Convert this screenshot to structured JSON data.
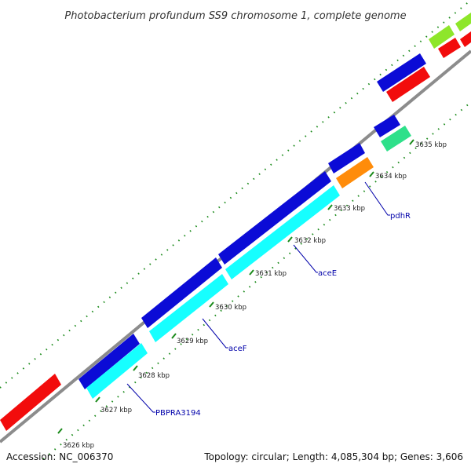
{
  "title": "Photobacterium profundum SS9 chromosome 1, complete genome",
  "footer": {
    "accession": "Accession: NC_006370",
    "summary": "Topology: circular; Length: 4,085,304 bp; Genes: 3,606"
  },
  "ticks": [
    "3626 kbp",
    "3627 kbp",
    "3628 kbp",
    "3629 kbp",
    "3630 kbp",
    "3631 kbp",
    "3632 kbp",
    "3633 kbp",
    "3634 kbp",
    "3635 kbp"
  ],
  "genes": [
    "PBPRA3194",
    "aceF",
    "aceE",
    "pdhR"
  ],
  "colors": {
    "backbone": "#8c8c8c",
    "blue": "#0b0bd6",
    "cyan": "#16ffff",
    "red": "#f20c0c",
    "orange": "#ff8c0a",
    "green": "#2ee08a",
    "lime": "#8ee62a",
    "tick": "#1a8a1a",
    "label": "#0000aa"
  }
}
